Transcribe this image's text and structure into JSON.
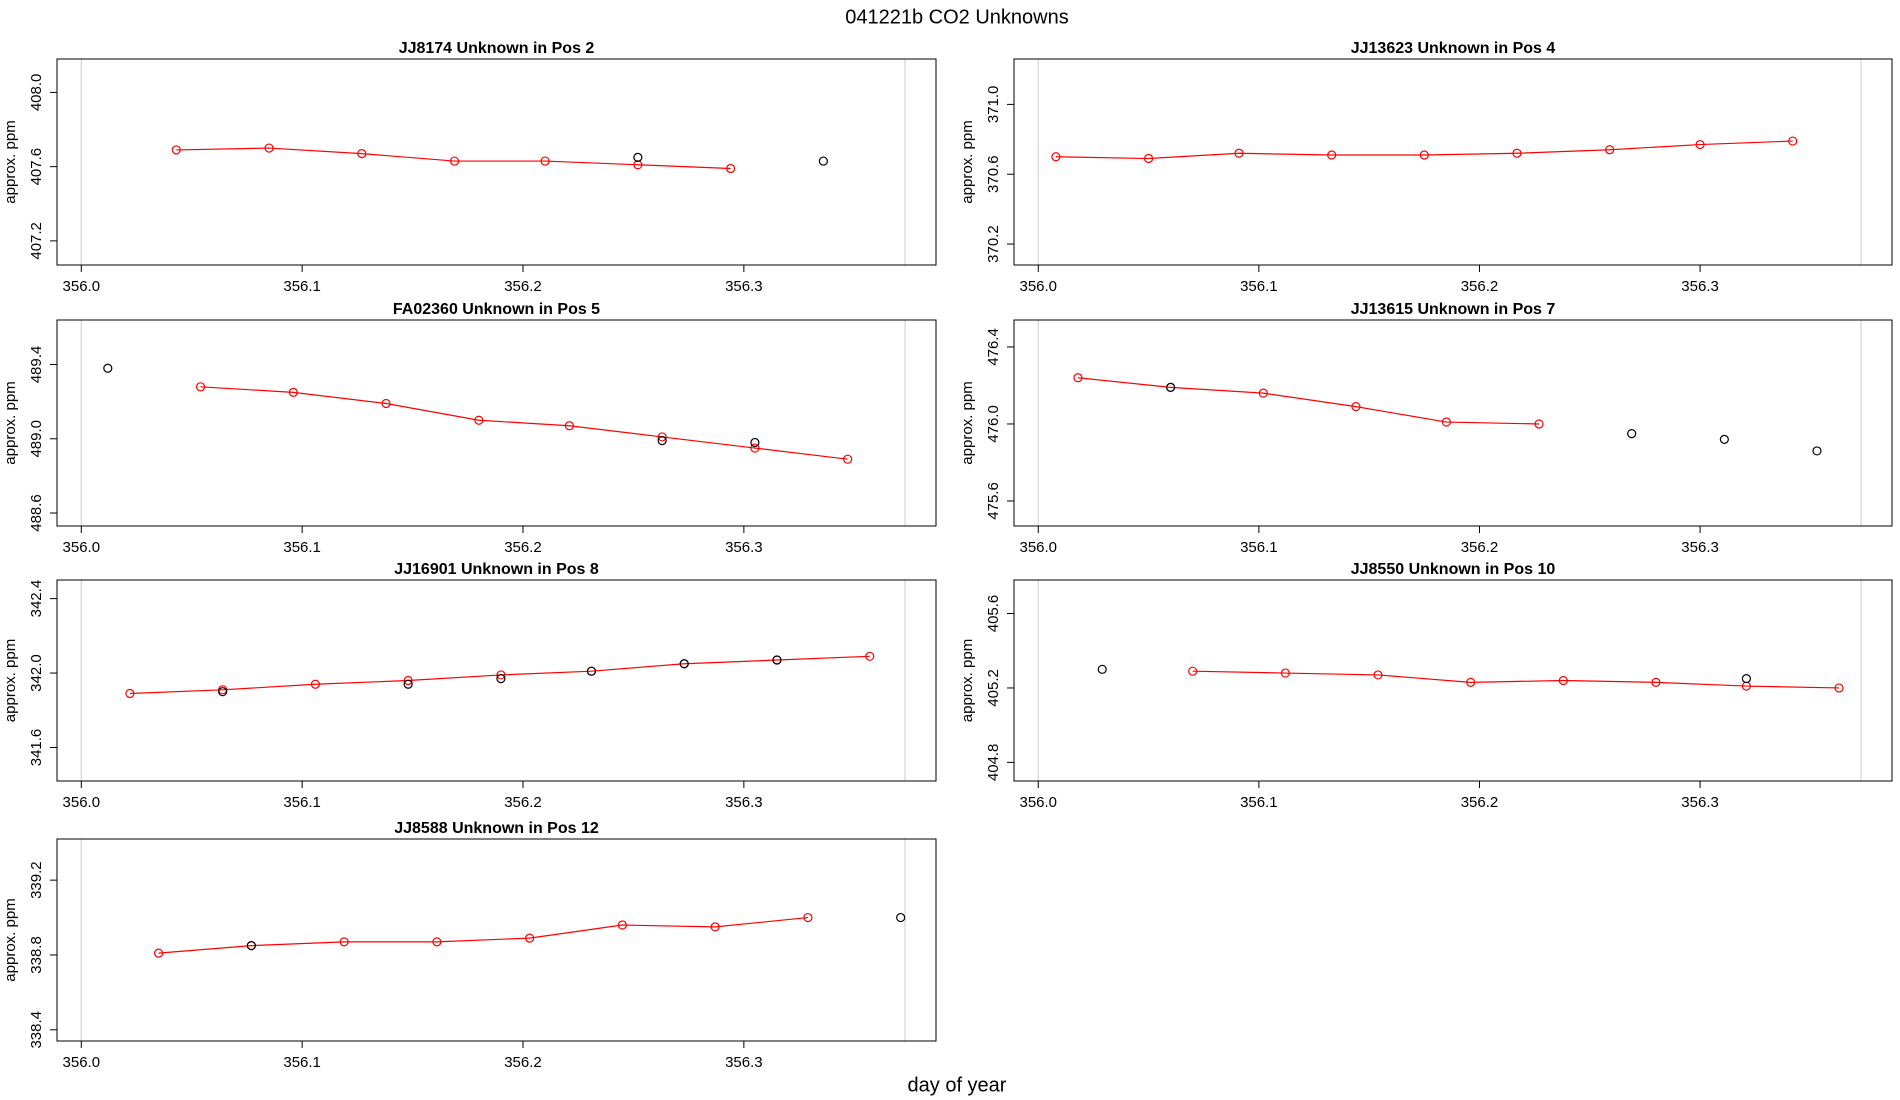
{
  "title": "041221b  CO2 Unknowns",
  "x_label": "day of year",
  "chart_data": [
    {
      "type": "line",
      "title": "JJ8174    Unknown in Pos 2",
      "y_label": "approx. ppm",
      "xlim": [
        355.989,
        356.387
      ],
      "ylim": [
        407.07,
        408.18
      ],
      "xticks": [
        {
          "value": 356,
          "label": "356.0"
        },
        356.1,
        356.2,
        356.3
      ],
      "yticks": [
        407.2,
        407.6,
        {
          "value": 408,
          "label": "408.0"
        }
      ],
      "vlines": [
        356,
        356.373
      ],
      "series": [
        {
          "color": "#ff0000",
          "mode": "lines+markers",
          "x": [
            356.043,
            356.085,
            356.127,
            356.169,
            356.21,
            356.252,
            356.294
          ],
          "values": [
            407.69,
            407.7,
            407.67,
            407.63,
            407.63,
            407.61,
            407.59
          ]
        },
        {
          "color": "#000000",
          "mode": "markers",
          "x": [
            356.252,
            356.336
          ],
          "values": [
            407.65,
            407.63
          ]
        }
      ]
    },
    {
      "type": "line",
      "title": "JJ13623    Unknown in Pos 4",
      "y_label": "approx. ppm",
      "xlim": [
        355.989,
        356.387
      ],
      "ylim": [
        370.08,
        371.26
      ],
      "xticks": [
        {
          "value": 356,
          "label": "356.0"
        },
        356.1,
        356.2,
        356.3
      ],
      "yticks": [
        370.2,
        370.6,
        {
          "value": 371,
          "label": "371.0"
        }
      ],
      "vlines": [
        356,
        356.373
      ],
      "series": [
        {
          "color": "#ff0000",
          "mode": "lines+markers",
          "x": [
            356.008,
            356.05,
            356.091,
            356.133,
            356.175,
            356.217,
            356.259,
            356.3,
            356.342
          ],
          "values": [
            370.7,
            370.69,
            370.72,
            370.71,
            370.71,
            370.72,
            370.74,
            370.77,
            370.79
          ]
        }
      ]
    },
    {
      "type": "line",
      "title": "FA02360    Unknown in Pos 5",
      "y_label": "approx. ppm",
      "xlim": [
        355.989,
        356.387
      ],
      "ylim": [
        488.53,
        489.64
      ],
      "xticks": [
        {
          "value": 356,
          "label": "356.0"
        },
        356.1,
        356.2,
        356.3
      ],
      "yticks": [
        488.6,
        {
          "value": 489,
          "label": "489.0"
        },
        489.4
      ],
      "vlines": [
        356,
        356.373
      ],
      "series": [
        {
          "color": "#ff0000",
          "mode": "lines+markers",
          "x": [
            356.054,
            356.096,
            356.138,
            356.18,
            356.221,
            356.263,
            356.305,
            356.347
          ],
          "values": [
            489.28,
            489.25,
            489.19,
            489.1,
            489.07,
            489.01,
            488.95,
            488.89
          ]
        },
        {
          "color": "#000000",
          "mode": "markers",
          "x": [
            356.012,
            356.263,
            356.305
          ],
          "values": [
            489.38,
            488.99,
            488.98
          ]
        }
      ]
    },
    {
      "type": "line",
      "title": "JJ13615    Unknown in Pos 7",
      "y_label": "approx. ppm",
      "xlim": [
        355.989,
        356.387
      ],
      "ylim": [
        475.47,
        476.54
      ],
      "xticks": [
        {
          "value": 356,
          "label": "356.0"
        },
        356.1,
        356.2,
        356.3
      ],
      "yticks": [
        475.6,
        {
          "value": 476,
          "label": "476.0"
        },
        476.4
      ],
      "vlines": [
        356,
        356.373
      ],
      "series": [
        {
          "color": "#ff0000",
          "mode": "lines+markers",
          "x": [
            356.018,
            356.06,
            356.102,
            356.144,
            356.185,
            356.227
          ],
          "values": [
            476.24,
            476.19,
            476.16,
            476.09,
            476.01,
            476.0
          ]
        },
        {
          "color": "#000000",
          "mode": "markers",
          "x": [
            356.06,
            356.269,
            356.311,
            356.353
          ],
          "values": [
            476.19,
            475.95,
            475.92,
            475.86
          ]
        }
      ]
    },
    {
      "type": "line",
      "title": "JJ16901    Unknown in Pos 8",
      "y_label": "approx. ppm",
      "xlim": [
        355.989,
        356.387
      ],
      "ylim": [
        341.42,
        342.5
      ],
      "xticks": [
        {
          "value": 356,
          "label": "356.0"
        },
        356.1,
        356.2,
        356.3
      ],
      "yticks": [
        341.6,
        {
          "value": 342,
          "label": "342.0"
        },
        342.4
      ],
      "vlines": [
        356,
        356.373
      ],
      "series": [
        {
          "color": "#ff0000",
          "mode": "lines+markers",
          "x": [
            356.022,
            356.064,
            356.106,
            356.148,
            356.19,
            356.231,
            356.273,
            356.315,
            356.357
          ],
          "values": [
            341.89,
            341.91,
            341.94,
            341.96,
            341.99,
            342.01,
            342.05,
            342.07,
            342.09
          ]
        },
        {
          "color": "#000000",
          "mode": "markers",
          "x": [
            356.064,
            356.148,
            356.19,
            356.231,
            356.273,
            356.315
          ],
          "values": [
            341.9,
            341.94,
            341.97,
            342.01,
            342.05,
            342.07
          ]
        }
      ]
    },
    {
      "type": "line",
      "title": "JJ8550    Unknown in Pos 10",
      "y_label": "approx. ppm",
      "xlim": [
        355.989,
        356.387
      ],
      "ylim": [
        404.7,
        405.78
      ],
      "xticks": [
        {
          "value": 356,
          "label": "356.0"
        },
        356.1,
        356.2,
        356.3
      ],
      "yticks": [
        404.8,
        405.2,
        405.6
      ],
      "vlines": [
        356,
        356.373
      ],
      "series": [
        {
          "color": "#ff0000",
          "mode": "lines+markers",
          "x": [
            356.07,
            356.112,
            356.154,
            356.196,
            356.238,
            356.28,
            356.321,
            356.363
          ],
          "values": [
            405.29,
            405.28,
            405.27,
            405.23,
            405.24,
            405.23,
            405.21,
            405.2
          ]
        },
        {
          "color": "#000000",
          "mode": "markers",
          "x": [
            356.029,
            356.321
          ],
          "values": [
            405.3,
            405.25
          ]
        }
      ]
    },
    {
      "type": "line",
      "title": "JJ8588    Unknown in Pos 12",
      "y_label": "approx. ppm",
      "xlim": [
        355.989,
        356.387
      ],
      "ylim": [
        338.34,
        339.42
      ],
      "xticks": [
        {
          "value": 356,
          "label": "356.0"
        },
        356.1,
        356.2,
        356.3
      ],
      "yticks": [
        338.4,
        338.8,
        339.2
      ],
      "vlines": [
        356,
        356.373
      ],
      "series": [
        {
          "color": "#ff0000",
          "mode": "lines+markers",
          "x": [
            356.035,
            356.077,
            356.119,
            356.161,
            356.203,
            356.245,
            356.287,
            356.329
          ],
          "values": [
            338.81,
            338.85,
            338.87,
            338.87,
            338.89,
            338.96,
            338.95,
            339.0
          ]
        },
        {
          "color": "#000000",
          "mode": "markers",
          "x": [
            356.077,
            356.371
          ],
          "values": [
            338.85,
            339.0
          ]
        }
      ]
    }
  ]
}
